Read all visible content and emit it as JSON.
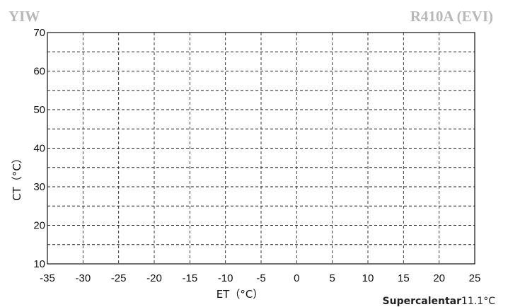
{
  "header": {
    "left_brand": "YIW",
    "right_brand": "R410A (EVI)",
    "brand_color": "#b8b8b8"
  },
  "chart_data": {
    "type": "line",
    "title": "",
    "xlabel": "ET（°C）",
    "ylabel": "CT（°C）",
    "xlim": [
      -35,
      25
    ],
    "ylim": [
      10,
      70
    ],
    "x_ticks": [
      -35,
      -30,
      -25,
      -20,
      -15,
      -10,
      -5,
      0,
      5,
      10,
      15,
      20,
      25
    ],
    "y_ticks": [
      10,
      20,
      30,
      40,
      50,
      60,
      70
    ],
    "y_minor_gridlines": [
      15,
      25,
      35,
      45,
      55,
      65
    ],
    "grid": "dashed",
    "series": []
  },
  "footnote": {
    "label": "Supercalentar",
    "value": "11.1°C"
  }
}
